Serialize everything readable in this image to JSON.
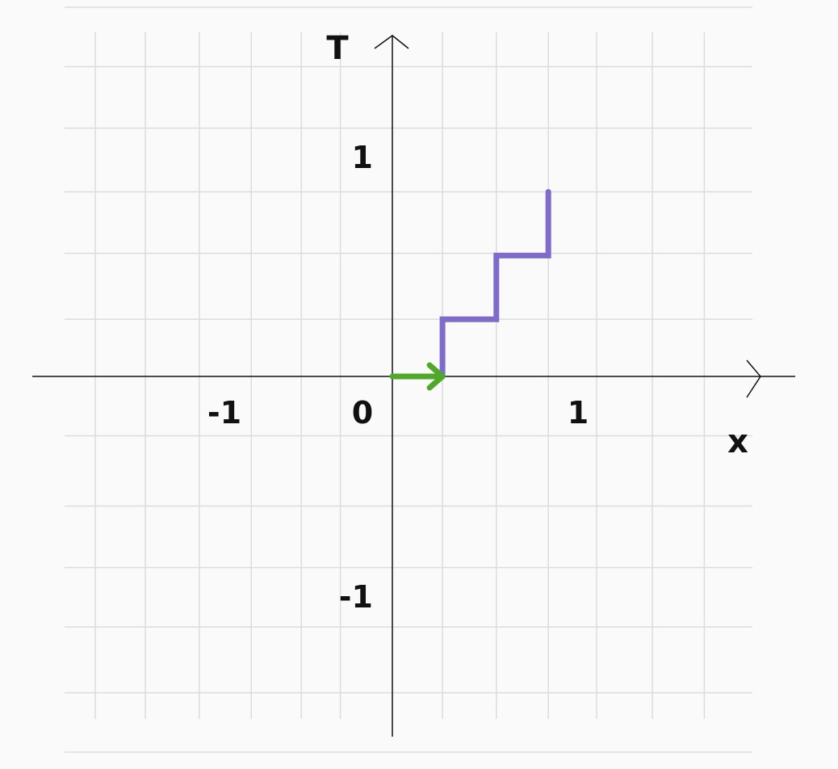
{
  "chart_data": {
    "type": "line",
    "xlabel": "x",
    "ylabel": "T",
    "xlim": [
      -1.9,
      2.1
    ],
    "ylim": [
      -1.9,
      1.85
    ],
    "grid": true,
    "x_ticks": [
      {
        "value": -1,
        "label": "-1"
      },
      {
        "value": 0,
        "label": "0"
      },
      {
        "value": 1,
        "label": "1"
      }
    ],
    "y_ticks": [
      {
        "value": 1,
        "label": "1"
      },
      {
        "value": -1,
        "label": "-1"
      }
    ],
    "grid_x": [
      -1.6,
      -1.33,
      -1.04,
      -0.76,
      -0.49,
      -0.28,
      0.27,
      0.56,
      0.84,
      1.1,
      1.4,
      1.68
    ],
    "grid_y": [
      1.68,
      1.41,
      1.13,
      0.84,
      0.56,
      0.26,
      -0.27,
      -0.59,
      -0.87,
      -1.14,
      -1.44,
      -1.71
    ],
    "series": [
      {
        "color": "#7f6bc9",
        "points": [
          [
            0.27,
            0
          ],
          [
            0.27,
            0.26
          ],
          [
            0.56,
            0.26
          ],
          [
            0.56,
            0.55
          ],
          [
            0.84,
            0.55
          ],
          [
            0.84,
            0.84
          ]
        ]
      },
      {
        "color": "#4fa82a",
        "arrow": {
          "from": [
            0,
            0
          ],
          "to": [
            0.27,
            0
          ]
        }
      }
    ]
  }
}
